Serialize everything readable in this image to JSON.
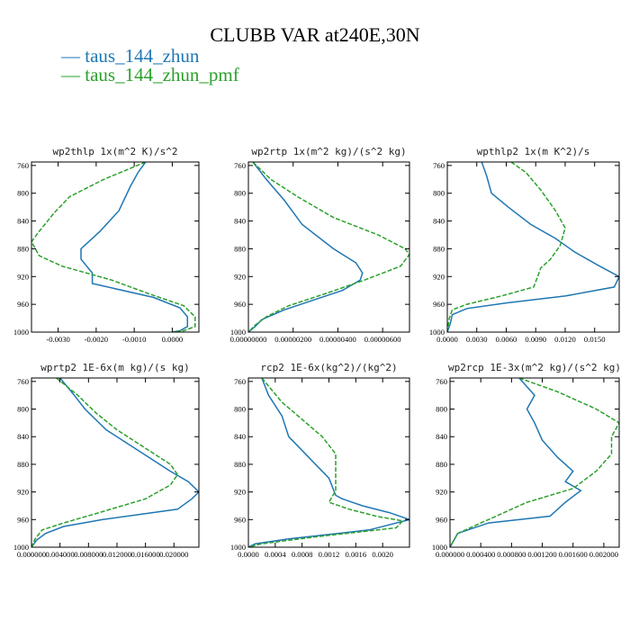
{
  "figure": {
    "title": "CLUBB VAR at240E,30N",
    "legend": [
      {
        "label": "— taus_144_zhun",
        "color": "#1f77b4"
      },
      {
        "label": "— taus_144_zhun_pmf",
        "color": "#2ca02c"
      }
    ]
  },
  "chart_data": [
    {
      "type": "line",
      "title": "wp2thlp  1x(m^2 K)/s^2",
      "xlim": [
        -0.0037,
        0.0007
      ],
      "ylim": [
        1000,
        755
      ],
      "xticks": [
        -0.003,
        -0.002,
        -0.001,
        0.0
      ],
      "xtick_labels": [
        "-0.0030",
        "-0.0020",
        "-0.0010",
        "0.0000"
      ],
      "yticks": [
        760,
        800,
        840,
        880,
        920,
        960,
        1000
      ],
      "series": [
        {
          "name": "taus_144_zhun",
          "color": "#1f77b4",
          "dashed": false,
          "points": [
            [
              -0.0007,
              755
            ],
            [
              -0.0009,
              770
            ],
            [
              -0.0011,
              790
            ],
            [
              -0.0014,
              825
            ],
            [
              -0.0019,
              855
            ],
            [
              -0.0024,
              880
            ],
            [
              -0.0024,
              895
            ],
            [
              -0.0021,
              915
            ],
            [
              -0.0021,
              930
            ],
            [
              -0.0005,
              950
            ],
            [
              0.0002,
              965
            ],
            [
              0.0004,
              978
            ],
            [
              0.0004,
              992
            ],
            [
              0.0002,
              998
            ],
            [
              0.0,
              1000
            ]
          ]
        },
        {
          "name": "taus_144_zhun_pmf",
          "color": "#2ca02c",
          "dashed": true,
          "points": [
            [
              -0.0007,
              755
            ],
            [
              -0.0018,
              780
            ],
            [
              -0.0027,
              805
            ],
            [
              -0.0031,
              828
            ],
            [
              -0.0035,
              855
            ],
            [
              -0.0037,
              870
            ],
            [
              -0.0035,
              890
            ],
            [
              -0.0029,
              905
            ],
            [
              -0.0016,
              925
            ],
            [
              -0.0006,
              945
            ],
            [
              0.0003,
              962
            ],
            [
              0.0006,
              978
            ],
            [
              0.0006,
              992
            ],
            [
              0.0003,
              998
            ],
            [
              0.0,
              1000
            ]
          ]
        }
      ]
    },
    {
      "type": "line",
      "title": "wp2rtp  1x(m^2 kg)/(s^2 kg)",
      "xlim": [
        0,
        7.2e-06
      ],
      "ylim": [
        1000,
        755
      ],
      "xticks": [
        0,
        2e-06,
        4e-06,
        6e-06
      ],
      "xtick_labels": [
        "0.00000000",
        "0.00000200",
        "0.00000400",
        "0.00000600"
      ],
      "yticks": [
        760,
        800,
        840,
        880,
        920,
        960,
        1000
      ],
      "series": [
        {
          "name": "taus_144_zhun",
          "color": "#1f77b4",
          "dashed": false,
          "points": [
            [
              2e-07,
              755
            ],
            [
              8e-07,
              780
            ],
            [
              1.6e-06,
              810
            ],
            [
              2.4e-06,
              845
            ],
            [
              3.8e-06,
              880
            ],
            [
              4.8e-06,
              900
            ],
            [
              5.1e-06,
              915
            ],
            [
              5e-06,
              925
            ],
            [
              4.2e-06,
              940
            ],
            [
              2.8e-06,
              955
            ],
            [
              1.6e-06,
              968
            ],
            [
              6e-07,
              982
            ],
            [
              3e-07,
              992
            ],
            [
              0.0,
              1000
            ]
          ]
        },
        {
          "name": "taus_144_zhun_pmf",
          "color": "#2ca02c",
          "dashed": true,
          "points": [
            [
              2e-07,
              755
            ],
            [
              1e-06,
              780
            ],
            [
              2.2e-06,
              805
            ],
            [
              3.8e-06,
              835
            ],
            [
              5.8e-06,
              860
            ],
            [
              7e-06,
              880
            ],
            [
              7.2e-06,
              888
            ],
            [
              6.8e-06,
              905
            ],
            [
              5.2e-06,
              925
            ],
            [
              3.4e-06,
              945
            ],
            [
              1.8e-06,
              962
            ],
            [
              8e-07,
              978
            ],
            [
              3e-07,
              990
            ],
            [
              0.0,
              1000
            ]
          ]
        }
      ]
    },
    {
      "type": "line",
      "title": "wpthlp2  1x(m K^2)/s",
      "xlim": [
        0,
        0.0175
      ],
      "ylim": [
        1000,
        755
      ],
      "xticks": [
        0,
        0.003,
        0.006,
        0.009,
        0.012,
        0.015
      ],
      "xtick_labels": [
        "0.0000",
        "0.0030",
        "0.0060",
        "0.0090",
        "0.0120",
        "0.0150"
      ],
      "yticks": [
        760,
        800,
        840,
        880,
        920,
        960,
        1000
      ],
      "series": [
        {
          "name": "taus_144_zhun",
          "color": "#1f77b4",
          "dashed": false,
          "points": [
            [
              0.0035,
              755
            ],
            [
              0.004,
              775
            ],
            [
              0.0045,
              800
            ],
            [
              0.0062,
              820
            ],
            [
              0.0085,
              845
            ],
            [
              0.011,
              865
            ],
            [
              0.013,
              885
            ],
            [
              0.0155,
              905
            ],
            [
              0.0175,
              920
            ],
            [
              0.017,
              935
            ],
            [
              0.012,
              948
            ],
            [
              0.006,
              958
            ],
            [
              0.002,
              966
            ],
            [
              0.0005,
              975
            ],
            [
              0.0003,
              988
            ],
            [
              0.0,
              1000
            ]
          ]
        },
        {
          "name": "taus_144_zhun_pmf",
          "color": "#2ca02c",
          "dashed": true,
          "points": [
            [
              0.0065,
              755
            ],
            [
              0.008,
              770
            ],
            [
              0.0095,
              795
            ],
            [
              0.011,
              825
            ],
            [
              0.012,
              850
            ],
            [
              0.0115,
              875
            ],
            [
              0.0105,
              895
            ],
            [
              0.0095,
              908
            ],
            [
              0.0092,
              920
            ],
            [
              0.0088,
              935
            ],
            [
              0.0055,
              948
            ],
            [
              0.002,
              960
            ],
            [
              0.0005,
              968
            ],
            [
              0.0002,
              980
            ],
            [
              0.0,
              1000
            ]
          ]
        }
      ]
    },
    {
      "type": "line",
      "title": "wprtp2  1E-6x(m kg)/(s kg)",
      "xlim": [
        0,
        0.0235
      ],
      "ylim": [
        1000,
        755
      ],
      "xticks": [
        0,
        0.004,
        0.008,
        0.012,
        0.016,
        0.02
      ],
      "xtick_labels": [
        "0.000000",
        "0.004000",
        "0.008000",
        "0.012000",
        "0.016000",
        "0.020000"
      ],
      "yticks": [
        760,
        800,
        840,
        880,
        920,
        960,
        1000
      ],
      "series": [
        {
          "name": "taus_144_zhun",
          "color": "#1f77b4",
          "dashed": false,
          "points": [
            [
              0.004,
              755
            ],
            [
              0.006,
              780
            ],
            [
              0.0075,
              800
            ],
            [
              0.0105,
              830
            ],
            [
              0.015,
              860
            ],
            [
              0.0195,
              890
            ],
            [
              0.022,
              905
            ],
            [
              0.0235,
              920
            ],
            [
              0.0225,
              930
            ],
            [
              0.0205,
              945
            ],
            [
              0.01,
              960
            ],
            [
              0.0045,
              970
            ],
            [
              0.002,
              980
            ],
            [
              0.0007,
              990
            ],
            [
              0.0,
              1000
            ]
          ]
        },
        {
          "name": "taus_144_zhun_pmf",
          "color": "#2ca02c",
          "dashed": true,
          "points": [
            [
              0.0035,
              755
            ],
            [
              0.0065,
              780
            ],
            [
              0.009,
              805
            ],
            [
              0.012,
              830
            ],
            [
              0.0165,
              860
            ],
            [
              0.0195,
              880
            ],
            [
              0.0205,
              895
            ],
            [
              0.0195,
              910
            ],
            [
              0.016,
              930
            ],
            [
              0.0095,
              950
            ],
            [
              0.0045,
              965
            ],
            [
              0.0015,
              975
            ],
            [
              0.0005,
              988
            ],
            [
              0.0,
              1000
            ]
          ]
        }
      ]
    },
    {
      "type": "line",
      "title": "rcp2  1E-6x(kg^2)/(kg^2)",
      "xlim": [
        0,
        0.0024
      ],
      "ylim": [
        1000,
        755
      ],
      "xticks": [
        0,
        0.0004,
        0.0008,
        0.0012,
        0.0016,
        0.002
      ],
      "xtick_labels": [
        "0.0000",
        "0.0004",
        "0.0008",
        "0.0012",
        "0.0016",
        "0.0020"
      ],
      "yticks": [
        760,
        800,
        840,
        880,
        920,
        960,
        1000
      ],
      "series": [
        {
          "name": "taus_144_zhun",
          "color": "#1f77b4",
          "dashed": false,
          "points": [
            [
              0.0002,
              755
            ],
            [
              0.0003,
              780
            ],
            [
              0.0005,
              810
            ],
            [
              0.0006,
              840
            ],
            [
              0.0009,
              870
            ],
            [
              0.0012,
              900
            ],
            [
              0.0013,
              925
            ],
            [
              0.0014,
              930
            ],
            [
              0.0017,
              940
            ],
            [
              0.0021,
              950
            ],
            [
              0.0024,
              960
            ],
            [
              0.0018,
              975
            ],
            [
              0.0006,
              988
            ],
            [
              0.0001,
              995
            ],
            [
              0.0,
              1000
            ]
          ]
        },
        {
          "name": "taus_144_zhun_pmf",
          "color": "#2ca02c",
          "dashed": true,
          "points": [
            [
              0.0002,
              755
            ],
            [
              0.0005,
              790
            ],
            [
              0.0008,
              815
            ],
            [
              0.0011,
              840
            ],
            [
              0.0013,
              865
            ],
            [
              0.0013,
              895
            ],
            [
              0.0013,
              918
            ],
            [
              0.0012,
              935
            ],
            [
              0.0015,
              945
            ],
            [
              0.0019,
              955
            ],
            [
              0.0023,
              962
            ],
            [
              0.0022,
              972
            ],
            [
              0.001,
              985
            ],
            [
              0.0002,
              995
            ],
            [
              0.0,
              1000
            ]
          ]
        }
      ]
    },
    {
      "type": "line",
      "title": "wp2rcp  1E-3x(m^2 kg)/(s^2 kg)",
      "xlim": [
        0,
        0.0022
      ],
      "ylim": [
        1000,
        755
      ],
      "xticks": [
        0,
        0.0004,
        0.0008,
        0.0012,
        0.0016,
        0.002
      ],
      "xtick_labels": [
        "0.000000",
        "0.000400",
        "0.000800",
        "0.001200",
        "0.001600",
        "0.002000"
      ],
      "yticks": [
        760,
        800,
        840,
        880,
        920,
        960,
        1000
      ],
      "series": [
        {
          "name": "taus_144_zhun",
          "color": "#1f77b4",
          "dashed": false,
          "points": [
            [
              0.0009,
              755
            ],
            [
              0.0011,
              780
            ],
            [
              0.001,
              800
            ],
            [
              0.0011,
              820
            ],
            [
              0.0012,
              845
            ],
            [
              0.0014,
              870
            ],
            [
              0.0016,
              890
            ],
            [
              0.0015,
              905
            ],
            [
              0.0017,
              918
            ],
            [
              0.0015,
              935
            ],
            [
              0.0013,
              955
            ],
            [
              0.0005,
              965
            ],
            [
              0.0001,
              980
            ],
            [
              0.0,
              1000
            ]
          ]
        },
        {
          "name": "taus_144_zhun_pmf",
          "color": "#2ca02c",
          "dashed": true,
          "points": [
            [
              0.0009,
              755
            ],
            [
              0.0014,
              775
            ],
            [
              0.0019,
              800
            ],
            [
              0.0022,
              820
            ],
            [
              0.0021,
              840
            ],
            [
              0.0021,
              865
            ],
            [
              0.0019,
              890
            ],
            [
              0.0016,
              915
            ],
            [
              0.001,
              935
            ],
            [
              0.0006,
              955
            ],
            [
              0.0004,
              965
            ],
            [
              0.0001,
              980
            ],
            [
              0.0,
              1000
            ]
          ]
        }
      ]
    }
  ]
}
